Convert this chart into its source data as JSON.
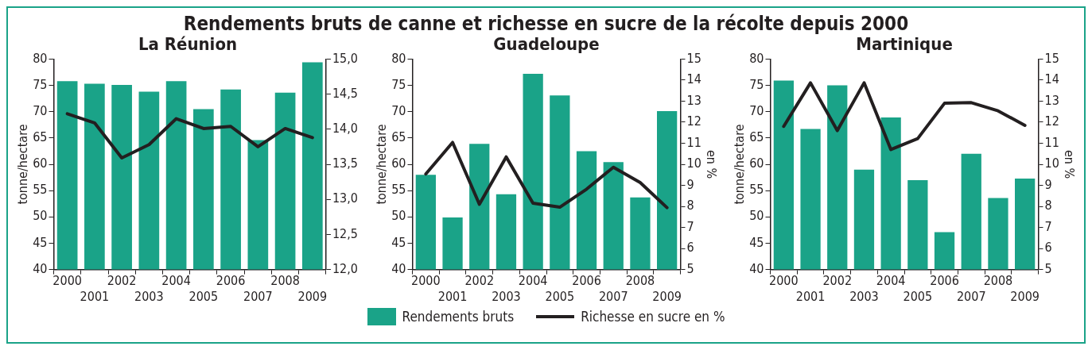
{
  "chart_data": [
    {
      "type": "bar",
      "title": "La Réunion",
      "annotations": [
        "Rendements bruts de canne et richesse en sucre de la récolte depuis 2000"
      ],
      "ylabel": "tonne/hectare",
      "categories": [
        "2000",
        "2001",
        "2002",
        "2003",
        "2004",
        "2005",
        "2006",
        "2007",
        "2008",
        "2009"
      ],
      "series": [
        {
          "name": "Rendements bruts",
          "color": "#1aa388",
          "values": [
            75.8,
            75.3,
            75.1,
            73.8,
            75.8,
            70.5,
            74.2,
            64.6,
            73.6,
            79.4
          ]
        },
        {
          "name": "Richesse en sucre en %",
          "type": "line",
          "axis": "y2",
          "color": "#231f20",
          "values": [
            14.22,
            14.09,
            13.59,
            13.78,
            14.15,
            14.01,
            14.04,
            13.75,
            14.01,
            13.88
          ]
        }
      ],
      "ylim": [
        40,
        80
      ],
      "yticks": [
        40,
        45,
        50,
        55,
        60,
        65,
        70,
        75,
        80
      ],
      "y2lim": [
        12,
        15
      ],
      "y2ticks": [
        {
          "value": 12,
          "label": "12,0"
        },
        {
          "value": 12.5,
          "label": "12,5"
        },
        {
          "value": 13,
          "label": "13,0"
        },
        {
          "value": 13.5,
          "label": "13,5"
        },
        {
          "value": 14,
          "label": "14,0"
        },
        {
          "value": 14.5,
          "label": "14,5"
        },
        {
          "value": 15,
          "label": "15,0"
        }
      ],
      "marker": "none",
      "legend": "bottom"
    },
    {
      "type": "bar",
      "title": "Guadeloupe",
      "ylabel": "tonne/hectare",
      "y2label": "en %",
      "categories": [
        "2000",
        "2001",
        "2002",
        "2003",
        "2004",
        "2005",
        "2006",
        "2007",
        "2008",
        "2009"
      ],
      "series": [
        {
          "color": "#1aa388",
          "values": [
            58.0,
            49.9,
            63.9,
            54.3,
            77.2,
            73.1,
            62.5,
            60.4,
            53.7,
            70.1
          ]
        },
        {
          "type": "line",
          "axis": "y2",
          "color": "#231f20",
          "values": [
            9.54,
            11.04,
            8.1,
            10.35,
            8.15,
            7.96,
            8.82,
            9.86,
            9.13,
            7.94
          ]
        }
      ],
      "ylim": [
        40,
        80
      ],
      "yticks": [
        40,
        45,
        50,
        55,
        60,
        65,
        70,
        75,
        80
      ],
      "y2lim": [
        5,
        15
      ],
      "y2ticks": [
        5,
        6,
        7,
        8,
        9,
        10,
        11,
        12,
        13,
        14,
        15
      ],
      "marker": "none"
    },
    {
      "type": "bar",
      "title": "Martinique",
      "ylabel": "tonne/hectare",
      "y2label": "en %",
      "categories": [
        "2000",
        "2001",
        "2002",
        "2003",
        "2004",
        "2005",
        "2006",
        "2007",
        "2008",
        "2009"
      ],
      "series": [
        {
          "color": "#1aa388",
          "values": [
            75.9,
            66.7,
            75.0,
            59.0,
            68.9,
            57.0,
            47.1,
            62.0,
            53.6,
            57.3
          ]
        },
        {
          "type": "line",
          "axis": "y2",
          "color": "#231f20",
          "values": [
            11.8,
            13.87,
            11.6,
            13.87,
            10.7,
            11.22,
            12.9,
            12.93,
            12.54,
            11.85
          ]
        }
      ],
      "ylim": [
        40,
        80
      ],
      "yticks": [
        40,
        45,
        50,
        55,
        60,
        65,
        70,
        75,
        80
      ],
      "y2lim": [
        5,
        15
      ],
      "y2ticks": [
        5,
        6,
        7,
        8,
        9,
        10,
        11,
        12,
        13,
        14,
        15
      ],
      "marker": "none"
    }
  ]
}
